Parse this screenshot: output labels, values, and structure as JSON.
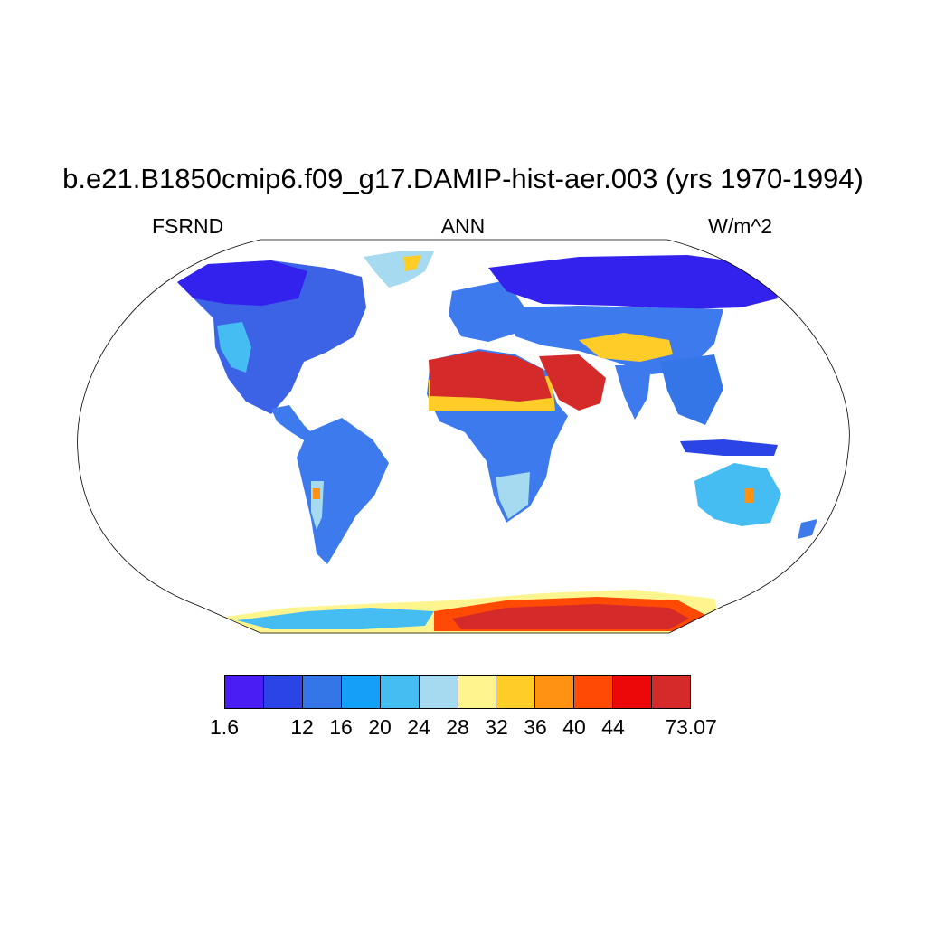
{
  "header": {
    "title": "b.e21.B1850cmip6.f09_g17.DAMIP-hist-aer.003 (yrs 1970-1994)",
    "variable": "FSRND",
    "season": "ANN",
    "units": "W/m^2"
  },
  "colorbar": {
    "colors": [
      "#4a1df5",
      "#2a44e6",
      "#3476e8",
      "#14a0f6",
      "#46bdf2",
      "#a6daf0",
      "#fff58e",
      "#ffcc28",
      "#ff9212",
      "#ff4a06",
      "#ec0808",
      "#d42a2a"
    ],
    "labels": [
      "1.6",
      "12",
      "16",
      "20",
      "24",
      "28",
      "32",
      "36",
      "40",
      "44",
      "73.07"
    ],
    "label_boundaries": [
      0,
      2,
      3,
      4,
      5,
      6,
      7,
      8,
      9,
      10,
      12
    ]
  },
  "map": {
    "projection": "Robinson",
    "ocean_masked": true,
    "regions": [
      {
        "name": "North America",
        "level": "low"
      },
      {
        "name": "Greenland",
        "level": "moderate"
      },
      {
        "name": "South America",
        "level": "low-moderate"
      },
      {
        "name": "Sahara and Arabia",
        "level": "high"
      },
      {
        "name": "Central Africa",
        "level": "low-moderate"
      },
      {
        "name": "Eurasia",
        "level": "low"
      },
      {
        "name": "Central Asia",
        "level": "moderate"
      },
      {
        "name": "Australia",
        "level": "moderate"
      },
      {
        "name": "Antarctica",
        "level": "high"
      }
    ]
  }
}
